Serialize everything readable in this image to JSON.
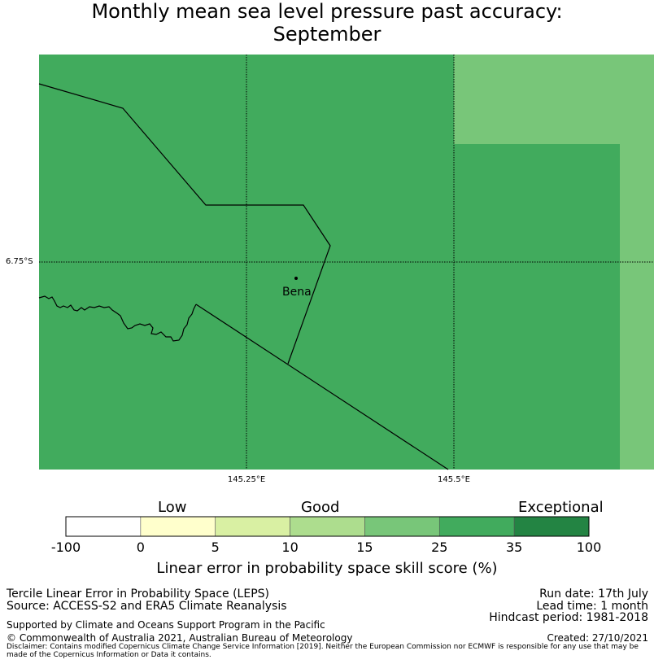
{
  "title_line1": "Monthly mean sea level pressure past accuracy:",
  "title_line2": "September",
  "map": {
    "lon_ticks": [
      "145.25°E",
      "145.5°E"
    ],
    "lat_ticks": [
      "6.75°S"
    ],
    "place_name": "Bena"
  },
  "colorbar": {
    "categories": [
      "Low",
      "Good",
      "Exceptional"
    ],
    "ticks": [
      "-100",
      "0",
      "5",
      "10",
      "15",
      "25",
      "35",
      "100"
    ],
    "colors": [
      "#ffffff",
      "#ffffcc",
      "#d9f0a3",
      "#addd8e",
      "#78c679",
      "#41ab5d",
      "#238443"
    ],
    "label": "Linear error in probability space skill score (%)"
  },
  "footer": {
    "left1": "Tercile Linear Error in Probability Space (LEPS)",
    "left2": "Source: ACCESS-S2 and ERA5 Climate Reanalysis",
    "support": "Supported by Climate and Oceans Support Program in the Pacific",
    "copyright": "© Commonwealth of Australia 2021, Australian Bureau of Meteorology",
    "disclaimer": "Disclaimer: Contains modified Copernicus Climate Change Service Information [2019]. Neither the European Commission nor ECMWF is responsible for any use that may be made of the Copernicus Information or Data it contains.",
    "run_date": "Run date: 17th July",
    "lead_time": "Lead time: 1 month",
    "hindcast": "Hindcast period: 1981-2018",
    "created": "Created: 27/10/2021"
  }
}
